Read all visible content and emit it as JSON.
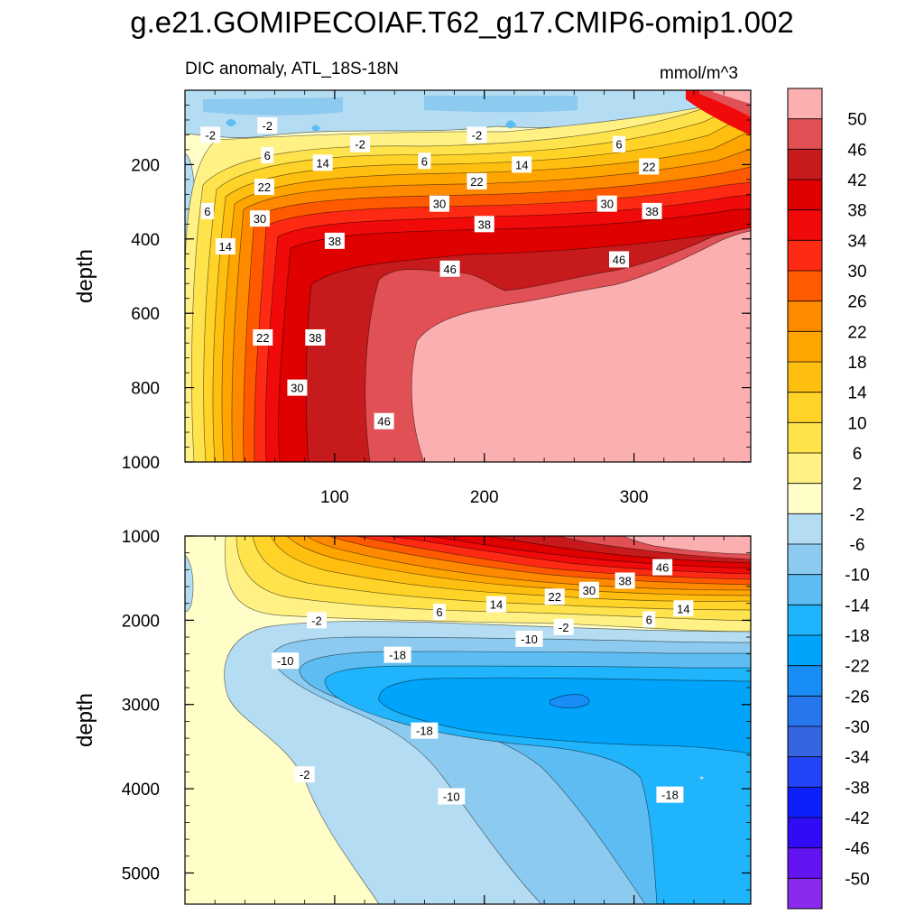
{
  "figure": {
    "title": "g.e21.GOMIPECOIAF.T62_g17.CMIP6-omip1.002",
    "subtitle_left": "DIC anomaly, ATL_18S-18N",
    "subtitle_right": "mmol/m^3"
  },
  "chart_data": [
    {
      "type": "heatmap",
      "panel": "top",
      "ylabel": "depth",
      "xlabel": "",
      "xlim": [
        0,
        378
      ],
      "ylim": [
        1000,
        0
      ],
      "x_ticks": [
        100,
        200,
        300
      ],
      "x_tick_labels": [
        "100",
        "200",
        "300"
      ],
      "y_ticks": [
        200,
        400,
        600,
        800,
        1000
      ],
      "y_tick_labels": [
        "200",
        "400",
        "600",
        "800",
        "1000"
      ],
      "contour_labels": [
        {
          "text": "-2",
          "x": 17,
          "y": 120
        },
        {
          "text": "-2",
          "x": 55,
          "y": 95
        },
        {
          "text": "-2",
          "x": 117,
          "y": 145
        },
        {
          "text": "-2",
          "x": 195,
          "y": 120
        },
        {
          "text": "6",
          "x": 15,
          "y": 325
        },
        {
          "text": "6",
          "x": 55,
          "y": 175
        },
        {
          "text": "6",
          "x": 160,
          "y": 190
        },
        {
          "text": "6",
          "x": 290,
          "y": 145
        },
        {
          "text": "14",
          "x": 27,
          "y": 420
        },
        {
          "text": "14",
          "x": 92,
          "y": 195
        },
        {
          "text": "14",
          "x": 225,
          "y": 200
        },
        {
          "text": "22",
          "x": 53,
          "y": 260
        },
        {
          "text": "22",
          "x": 52,
          "y": 665
        },
        {
          "text": "22",
          "x": 195,
          "y": 245
        },
        {
          "text": "22",
          "x": 310,
          "y": 205
        },
        {
          "text": "30",
          "x": 50,
          "y": 345
        },
        {
          "text": "30",
          "x": 75,
          "y": 800
        },
        {
          "text": "30",
          "x": 170,
          "y": 305
        },
        {
          "text": "30",
          "x": 282,
          "y": 305
        },
        {
          "text": "38",
          "x": 100,
          "y": 405
        },
        {
          "text": "38",
          "x": 87,
          "y": 665
        },
        {
          "text": "38",
          "x": 200,
          "y": 360
        },
        {
          "text": "38",
          "x": 312,
          "y": 325
        },
        {
          "text": "46",
          "x": 133,
          "y": 890
        },
        {
          "text": "46",
          "x": 177,
          "y": 480
        },
        {
          "text": "46",
          "x": 290,
          "y": 455
        }
      ]
    },
    {
      "type": "heatmap",
      "panel": "bottom",
      "ylabel": "depth",
      "xlabel": "",
      "xlim": [
        0,
        378
      ],
      "ylim": [
        5370,
        1000
      ],
      "x_ticks": [
        100,
        200,
        300
      ],
      "y_ticks": [
        1000,
        2000,
        3000,
        4000,
        5000
      ],
      "y_tick_labels": [
        "1000",
        "2000",
        "3000",
        "4000",
        "5000"
      ],
      "contour_labels": [
        {
          "text": "-2",
          "x": 88,
          "y": 2000
        },
        {
          "text": "-2",
          "x": 253,
          "y": 2080
        },
        {
          "text": "-2",
          "x": 80,
          "y": 3830
        },
        {
          "text": "6",
          "x": 170,
          "y": 1900
        },
        {
          "text": "6",
          "x": 310,
          "y": 1990
        },
        {
          "text": "14",
          "x": 208,
          "y": 1810
        },
        {
          "text": "14",
          "x": 333,
          "y": 1860
        },
        {
          "text": "22",
          "x": 247,
          "y": 1720
        },
        {
          "text": "30",
          "x": 270,
          "y": 1640
        },
        {
          "text": "38",
          "x": 294,
          "y": 1530
        },
        {
          "text": "46",
          "x": 319,
          "y": 1370
        },
        {
          "text": "-10",
          "x": 67,
          "y": 2480
        },
        {
          "text": "-10",
          "x": 230,
          "y": 2220
        },
        {
          "text": "-10",
          "x": 178,
          "y": 4090
        },
        {
          "text": "-18",
          "x": 142,
          "y": 2410
        },
        {
          "text": "-18",
          "x": 160,
          "y": 3310
        },
        {
          "text": "-18",
          "x": 324,
          "y": 4070
        }
      ]
    }
  ],
  "colorbar": {
    "labels": [
      "50",
      "46",
      "42",
      "38",
      "34",
      "30",
      "26",
      "22",
      "18",
      "14",
      "10",
      "6",
      "2",
      "-2",
      "-6",
      "-10",
      "-14",
      "-18",
      "-22",
      "-26",
      "-30",
      "-34",
      "-38",
      "-42",
      "-46",
      "-50"
    ],
    "colors": [
      "#fcafb0",
      "#e05054",
      "#c71a1c",
      "#df0000",
      "#f10a0a",
      "#ff2a14",
      "#ff5a00",
      "#ff8a00",
      "#ffa500",
      "#ffbf10",
      "#ffd328",
      "#ffe34c",
      "#fff184",
      "#fffdc8",
      "#b4dcf2",
      "#8dcaf0",
      "#5dbdf3",
      "#1fb4fb",
      "#00a4fb",
      "#178df5",
      "#2876ec",
      "#3665e2",
      "#2444f8",
      "#0d1ffb",
      "#2f0cf5",
      "#6413f1",
      "#8a2aec"
    ]
  }
}
